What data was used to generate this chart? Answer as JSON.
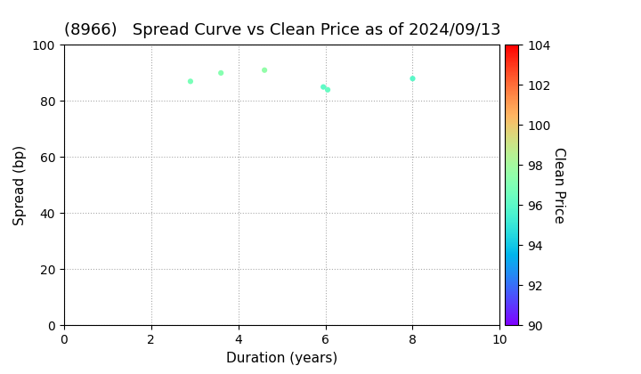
{
  "title": "(8966)   Spread Curve vs Clean Price as of 2024/09/13",
  "xlabel": "Duration (years)",
  "ylabel": "Spread (bp)",
  "colorbar_label": "Clean Price",
  "xlim": [
    0,
    10
  ],
  "ylim": [
    0,
    100
  ],
  "xticks": [
    0,
    2,
    4,
    6,
    8,
    10
  ],
  "yticks": [
    0,
    20,
    40,
    60,
    80,
    100
  ],
  "colorbar_min": 90,
  "colorbar_max": 104,
  "colorbar_ticks": [
    90,
    92,
    94,
    96,
    98,
    100,
    102,
    104
  ],
  "points": [
    {
      "duration": 2.9,
      "spread": 87,
      "clean_price": 96.8
    },
    {
      "duration": 3.6,
      "spread": 90,
      "clean_price": 97.2
    },
    {
      "duration": 4.6,
      "spread": 91,
      "clean_price": 97.5
    },
    {
      "duration": 6.05,
      "spread": 84,
      "clean_price": 96.3
    },
    {
      "duration": 5.95,
      "spread": 85,
      "clean_price": 96.1
    },
    {
      "duration": 8.0,
      "spread": 88,
      "clean_price": 96.0
    }
  ],
  "background_color": "#ffffff",
  "grid_color": "#aaaaaa",
  "title_fontsize": 13,
  "axis_label_fontsize": 11,
  "tick_fontsize": 10,
  "marker_size": 20
}
